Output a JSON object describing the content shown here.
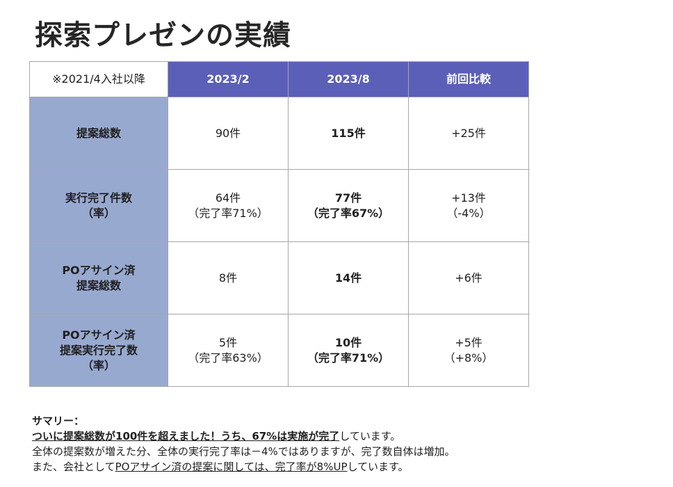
{
  "title": "探索プレゼンの実績",
  "table": {
    "note": "※2021/4入社以降",
    "columns": [
      "2023/2",
      "2023/8",
      "前回比較"
    ],
    "rows": [
      {
        "header": [
          "提案総数"
        ],
        "v1": [
          "90件"
        ],
        "v2": [
          "115件"
        ],
        "diff": [
          "+25件"
        ]
      },
      {
        "header": [
          "実行完了件数",
          "（率）"
        ],
        "v1": [
          "64件",
          "（完了率71%）"
        ],
        "v2": [
          "77件",
          "（完了率67%）"
        ],
        "diff": [
          "+13件",
          "（-4%）"
        ]
      },
      {
        "header": [
          "POアサイン済",
          "提案総数"
        ],
        "v1": [
          "8件"
        ],
        "v2": [
          "14件"
        ],
        "diff": [
          "+6件"
        ]
      },
      {
        "header": [
          "POアサイン済",
          "提案実行完了数",
          "（率）"
        ],
        "v1": [
          "5件",
          "（完了率63%）"
        ],
        "v2": [
          "10件",
          "（完了率71%）"
        ],
        "diff": [
          "+5件",
          "（+8%）"
        ]
      }
    ]
  },
  "summary": {
    "heading": "サマリー：",
    "line1": "ついに提案総数が100件を超えました！うち、67%は実施が完了",
    "line1_rest": "しています。",
    "line2": "全体の提案数が増えた分、全体の実行完了率は－4%ではありますが、完了数自体は増加。",
    "line3_pre": "また、会社として",
    "line3_ul": "POアサイン済の提案に関しては、完了率が8%UP",
    "line3_rest": "しています。"
  }
}
